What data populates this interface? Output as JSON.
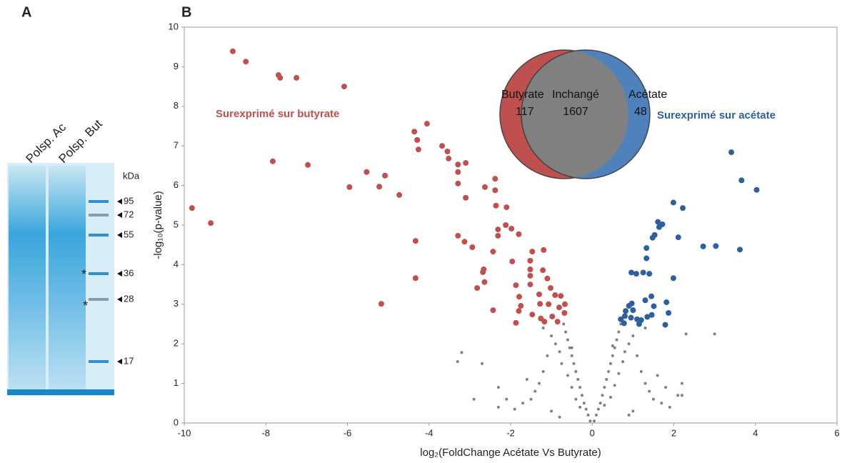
{
  "panel_a": {
    "label": "A",
    "lanes": [
      "Polsp. Ac",
      "Polsp. But"
    ],
    "unit": "kDa",
    "markers": [
      95,
      72,
      55,
      36,
      28,
      17
    ],
    "asterisks": [
      "*",
      "*"
    ]
  },
  "chart_data": {
    "type": "scatter",
    "panel_label": "B",
    "xlabel": "log₂(FoldChange Acétate Vs Butyrate)",
    "ylabel": "-log₁₀(p-value)",
    "xlim": [
      -10,
      6
    ],
    "xticks": [
      -10,
      -8,
      -6,
      -4,
      -2,
      0,
      2,
      4,
      6
    ],
    "ylim": [
      0,
      10
    ],
    "yticks": [
      0,
      1,
      2,
      3,
      4,
      5,
      6,
      7,
      8,
      9,
      10
    ],
    "annotations": [
      {
        "text": "Surexprimé sur butyrate",
        "color": "#c0504d"
      },
      {
        "text": "Surexprimé sur acétate",
        "color": "#2e5f9e"
      }
    ],
    "venn": [
      {
        "label": "Butyrate",
        "count": 117,
        "color": "#c0504d"
      },
      {
        "label": "Inchangé",
        "count": 1607,
        "color": "#808080"
      },
      {
        "label": "Acétate",
        "count": 48,
        "color": "#4f81bd"
      }
    ],
    "series": [
      {
        "color": "#808080",
        "size": 2,
        "x": [
          -0.05,
          0.05,
          -0.1,
          0.1,
          -0.15,
          0.15,
          -0.2,
          0.2,
          -0.25,
          0.25,
          -0.3,
          0.3,
          -0.35,
          0.35,
          -0.4,
          0.4,
          -0.45,
          0.45,
          -0.5,
          0.5,
          -0.55,
          0.55,
          -0.6,
          0.6,
          -0.65,
          0.65,
          -0.7,
          0.7,
          -0.3,
          0.3,
          -0.4,
          0.45,
          -0.5,
          0.55,
          -0.6,
          0.65,
          -0.75,
          0.75,
          -0.8,
          0.8,
          -0.9,
          0.9,
          -1.0,
          1.0,
          -1.1,
          1.1,
          -1.2,
          1.2,
          -1.3,
          1.3,
          -1.4,
          1.4,
          -1.5,
          1.5,
          -1.7,
          1.7,
          -1.9,
          1.9,
          -2.1,
          2.1,
          -2.3,
          2.2,
          -2.7,
          -3.2,
          -3.3,
          -2.9,
          2.3,
          3.0,
          -1.6,
          1.6,
          1.8,
          -2.3,
          2.2,
          -1.0,
          1.0,
          -0.8,
          0.9,
          -1.2,
          1.3,
          -0.5,
          0.5
        ],
        "values": [
          0.05,
          0.05,
          0.2,
          0.2,
          0.35,
          0.35,
          0.5,
          0.5,
          0.7,
          0.7,
          0.9,
          0.9,
          1.1,
          1.1,
          1.3,
          1.3,
          1.5,
          1.5,
          1.7,
          1.7,
          1.9,
          1.9,
          2.1,
          2.1,
          2.3,
          2.3,
          2.5,
          2.5,
          0.4,
          0.45,
          0.6,
          0.65,
          0.9,
          0.95,
          1.2,
          1.25,
          1.5,
          1.55,
          1.8,
          1.8,
          2.0,
          2.0,
          2.2,
          2.2,
          1.7,
          1.7,
          1.3,
          1.3,
          1.0,
          1.0,
          0.8,
          0.8,
          0.6,
          0.6,
          0.5,
          0.5,
          0.35,
          0.4,
          0.6,
          0.7,
          0.9,
          1.0,
          1.5,
          1.78,
          1.55,
          0.6,
          2.25,
          2.25,
          1.1,
          1.2,
          0.9,
          0.4,
          0.7,
          0.3,
          0.3,
          0.15,
          0.2,
          2.4,
          2.4,
          1.9,
          1.95
        ]
      },
      {
        "color": "#c0504d",
        "size": 4,
        "x": [
          -9.81,
          -9.35,
          -8.81,
          -8.49,
          -7.69,
          -7.65,
          -7.25,
          -6.08,
          -7.83,
          -6.97,
          -5.53,
          -5.95,
          -5.22,
          -5.08,
          -4.73,
          -5.17,
          -4.36,
          -4.29,
          -4.26,
          -4.05,
          -3.68,
          -3.55,
          -3.52,
          -4.33,
          -4.33,
          -3.29,
          -3.1,
          -3.29,
          -3.29,
          -3.1,
          -3.29,
          -3.13,
          -2.94,
          -2.63,
          -2.38,
          -2.38,
          -2.36,
          -2.1,
          -2.12,
          -2.31,
          -2.31,
          -2.43,
          -2.66,
          -2.68,
          -2.82,
          -2.64,
          -2.43,
          -1.98,
          -1.8,
          -1.47,
          -1.52,
          -1.19,
          -1.52,
          -1.52,
          -1.52,
          -1.87,
          -1.79,
          -1.75,
          -1.8,
          -1.87,
          -1.96,
          -1.21,
          -1.1,
          -1.02,
          -1.3,
          -0.91,
          -1.07,
          -0.81,
          -0.68,
          -0.98,
          -1.26,
          -1.47,
          -0.85,
          -1.17,
          -0.67,
          -0.77,
          -1.28
        ],
        "values": [
          5.43,
          5.05,
          9.39,
          9.13,
          8.79,
          8.72,
          8.72,
          8.5,
          6.61,
          6.52,
          6.34,
          5.96,
          5.97,
          6.25,
          5.76,
          3.01,
          7.36,
          7.15,
          6.91,
          7.56,
          7.0,
          6.86,
          6.68,
          4.6,
          3.66,
          6.53,
          6.57,
          6.34,
          6.05,
          5.69,
          4.73,
          4.58,
          4.44,
          5.96,
          6.17,
          5.88,
          5.49,
          5.45,
          5.0,
          4.89,
          4.73,
          4.33,
          3.88,
          3.81,
          3.41,
          3.56,
          2.85,
          4.91,
          4.77,
          4.33,
          4.1,
          4.37,
          3.88,
          3.72,
          3.5,
          3.48,
          3.19,
          2.96,
          2.83,
          2.53,
          4.08,
          3.86,
          3.65,
          3.41,
          3.25,
          3.23,
          3.0,
          2.92,
          2.78,
          2.69,
          2.64,
          2.74,
          2.56,
          2.56,
          3.0,
          3.21,
          3.01
        ]
      },
      {
        "color": "#2e5f9e",
        "size": 4,
        "x": [
          3.41,
          3.66,
          4.03,
          3.62,
          3.03,
          2.72,
          2.22,
          1.99,
          2.11,
          1.99,
          1.79,
          1.53,
          1.64,
          1.72,
          1.61,
          1.48,
          1.33,
          1.33,
          1.4,
          1.25,
          1.08,
          0.96,
          0.97,
          0.9,
          0.82,
          0.8,
          0.7,
          0.78,
          0.95,
          1.1,
          1.2,
          1.35,
          1.46,
          1.51,
          1.45,
          1.3,
          1.82,
          1.87,
          1.0,
          1.15
        ],
        "values": [
          6.84,
          6.13,
          5.89,
          4.38,
          4.47,
          4.46,
          5.43,
          5.57,
          4.69,
          3.66,
          2.48,
          4.75,
          4.95,
          5.02,
          5.08,
          4.68,
          4.42,
          4.16,
          3.77,
          3.8,
          3.77,
          3.8,
          3.02,
          2.96,
          2.83,
          2.7,
          2.62,
          2.52,
          2.66,
          2.62,
          2.6,
          2.68,
          2.73,
          2.95,
          3.2,
          3.1,
          3.05,
          2.78,
          2.85,
          2.5
        ]
      }
    ]
  }
}
